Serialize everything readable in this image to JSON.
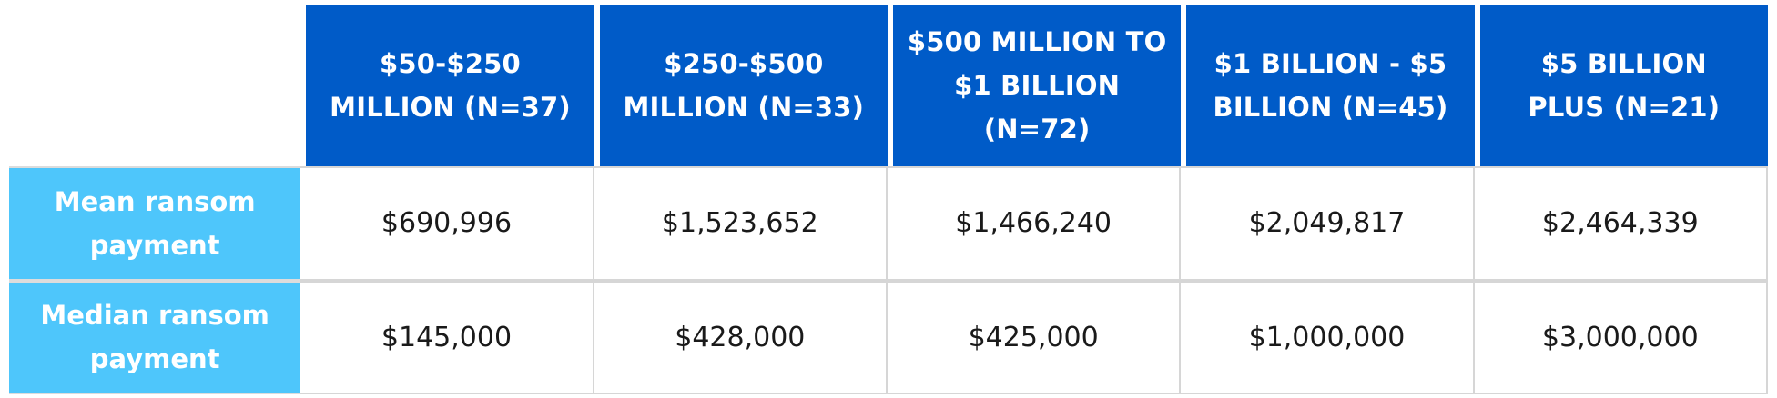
{
  "chart_data": {
    "type": "table",
    "columns": [
      "$50-$250 MILLION (N=37)",
      "$250-$500 MILLION (N=33)",
      "$500 MILLION TO $1 BILLION (N=72)",
      "$1 BILLION - $5 BILLION (N=45)",
      "$5 BILLION PLUS (N=21)"
    ],
    "column_lines": [
      [
        "$50-$250",
        "MILLION (N=37)"
      ],
      [
        "$250-$500",
        "MILLION (N=33)"
      ],
      [
        "$500 MILLION TO",
        "$1 BILLION (N=72)"
      ],
      [
        "$1 BILLION - $5",
        "BILLION (N=45)"
      ],
      [
        "$5 BILLION",
        "PLUS (N=21)"
      ]
    ],
    "rows": [
      {
        "label_lines": [
          "Mean ransom",
          "payment"
        ],
        "label": "Mean ransom payment",
        "cells": [
          "$690,996",
          "$1,523,652",
          "$1,466,240",
          "$2,049,817",
          "$2,464,339"
        ],
        "values": [
          690996,
          1523652,
          1466240,
          2049817,
          2464339
        ]
      },
      {
        "label_lines": [
          "Median ransom",
          "payment"
        ],
        "label": "Median ransom payment",
        "cells": [
          "$145,000",
          "$428,000",
          "$425,000",
          "$1,000,000",
          "$3,000,000"
        ],
        "values": [
          145000,
          428000,
          425000,
          1000000,
          3000000
        ]
      }
    ]
  },
  "colors": {
    "header_bg": "#005bc8",
    "row_header_bg": "#4ec6fb",
    "header_text": "#ffffff",
    "cell_text": "#1a1a1a",
    "grid": "#d6d6d6"
  }
}
